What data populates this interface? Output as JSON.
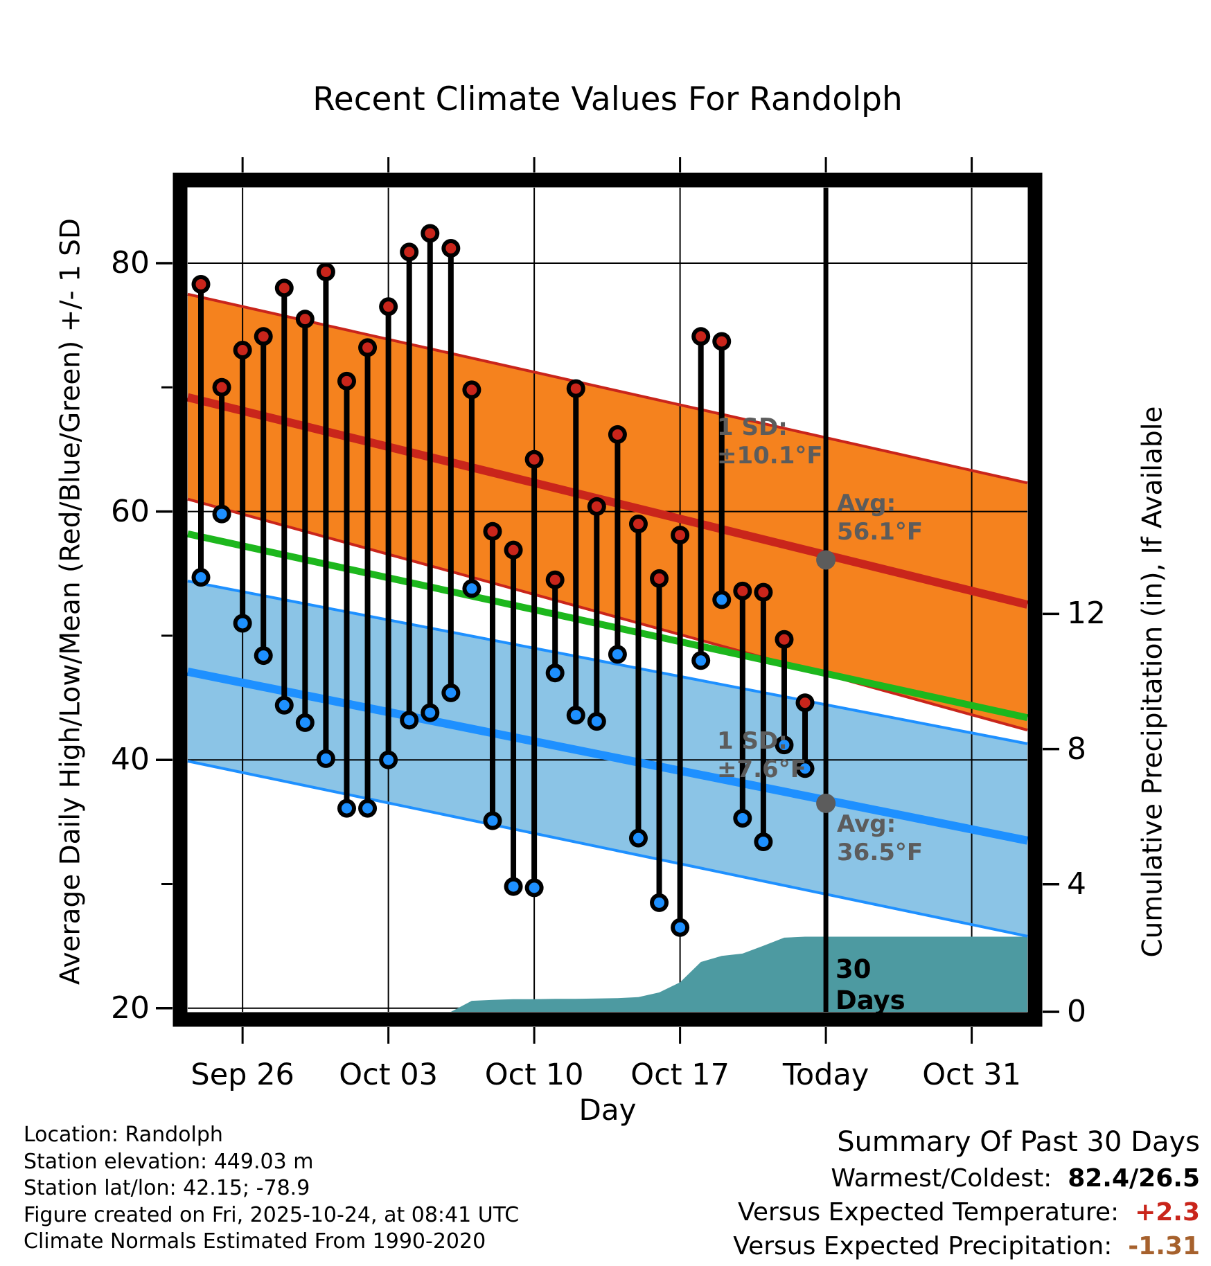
{
  "chart_data": {
    "type": "line",
    "title": "Recent Climate Values For Randolph",
    "xlabel": "Day",
    "ylabel_left": "Average Daily High/Low/Mean (Red/Blue/Green) +/- 1 SD",
    "ylabel_right": "Cumulative Precipitation (in), If Available",
    "x_axis": {
      "tick_labels": [
        "Sep 26",
        "Oct 03",
        "Oct 10",
        "Oct 17",
        "Today",
        "Oct 31"
      ],
      "tick_days": [
        2,
        9,
        16,
        23,
        30,
        37
      ],
      "today_day": 30
    },
    "y_axis_left": {
      "major_ticks": [
        20,
        40,
        60,
        80
      ],
      "minor_ticks": [
        30,
        50,
        70
      ]
    },
    "y_axis_right": {
      "major_ticks": [
        0,
        4,
        8,
        12
      ]
    },
    "grid": true,
    "categories": [
      "Sep 24",
      "Sep 25",
      "Sep 26",
      "Sep 27",
      "Sep 28",
      "Sep 29",
      "Sep 30",
      "Oct 01",
      "Oct 02",
      "Oct 03",
      "Oct 04",
      "Oct 05",
      "Oct 06",
      "Oct 07",
      "Oct 08",
      "Oct 09",
      "Oct 10",
      "Oct 11",
      "Oct 12",
      "Oct 13",
      "Oct 14",
      "Oct 15",
      "Oct 16",
      "Oct 17",
      "Oct 18",
      "Oct 19",
      "Oct 20",
      "Oct 21",
      "Oct 22",
      "Oct 23"
    ],
    "series": [
      {
        "name": "daily_high_F",
        "values": [
          78.3,
          70.0,
          73.0,
          74.1,
          78.0,
          75.5,
          79.3,
          70.5,
          73.2,
          76.5,
          80.9,
          82.4,
          81.2,
          69.8,
          58.4,
          56.9,
          64.2,
          54.5,
          69.9,
          60.4,
          66.2,
          59.0,
          54.6,
          58.1,
          74.1,
          73.7,
          53.6,
          53.5,
          49.7,
          44.6
        ]
      },
      {
        "name": "daily_low_F",
        "values": [
          54.7,
          59.8,
          51.0,
          48.4,
          44.4,
          43.0,
          40.1,
          36.1,
          36.1,
          40.0,
          43.2,
          43.8,
          45.4,
          53.8,
          35.1,
          29.8,
          29.7,
          47.0,
          43.6,
          43.1,
          48.5,
          33.7,
          28.5,
          26.5,
          48.0,
          52.9,
          35.3,
          33.4,
          41.2,
          39.3
        ]
      },
      {
        "name": "cumulative_precip_in",
        "values": [
          0.05,
          0.05,
          0.07,
          0.08,
          0.08,
          0.08,
          0.08,
          0.09,
          0.1,
          0.1,
          0.1,
          0.1,
          0.18,
          0.55,
          0.58,
          0.6,
          0.6,
          0.61,
          0.61,
          0.62,
          0.63,
          0.66,
          0.8,
          1.1,
          1.7,
          1.88,
          1.95,
          2.18,
          2.42,
          2.45
        ]
      }
    ],
    "normals_edge_values": {
      "comment_days_at_plot_edges": [
        -0.63,
        39.67
      ],
      "high_upper": [
        77.5,
        62.3
      ],
      "high_mean": [
        69.2,
        52.5
      ],
      "high_lower": [
        61.0,
        42.4
      ],
      "mean_green": [
        58.2,
        43.4
      ],
      "low_upper": [
        54.4,
        41.3
      ],
      "low_mean": [
        47.1,
        33.5
      ],
      "low_lower": [
        39.9,
        25.8
      ]
    },
    "annotations": {
      "high_sd_line1": "1 SD:",
      "high_sd_line2": "±10.1°F",
      "high_avg_line1": "Avg:",
      "high_avg_line2": "56.1°F",
      "high_avg_value": 56.1,
      "low_sd_line1": "1 SD:",
      "low_sd_line2": "±7.6°F",
      "low_avg_line1": "Avg:",
      "low_avg_line2": "36.5°F",
      "low_avg_value": 36.5,
      "period_line1": "30",
      "period_line2": "Days"
    },
    "colors": {
      "high_band_fill": "#F5821E",
      "red_line": "#C9251B",
      "green_line": "#1DB71D",
      "low_band_fill": "#8BC4E6",
      "blue_line": "#1E90FF",
      "precip_fill": "#4D9AA1",
      "annotation_gray": "#5C5C5C",
      "stem_black": "#000000"
    }
  },
  "footer_left": {
    "line1": "Location: Randolph",
    "line2": "Station elevation: 449.03 m",
    "line3": "Station lat/lon: 42.15; -78.9",
    "line4": "Figure created on Fri, 2025-10-24, at 08:41 UTC",
    "line5": "Climate Normals Estimated From 1990-2020"
  },
  "footer_right": {
    "title": "Summary Of Past 30 Days",
    "warmest_coldest_label": "Warmest/Coldest:",
    "warmest_coldest_value": "82.4/26.5",
    "vs_temp_label": "Versus Expected Temperature:",
    "vs_temp_value": "+2.3",
    "vs_temp_color": "#C9251B",
    "vs_precip_label": "Versus Expected Precipitation:",
    "vs_precip_value": "-1.31",
    "vs_precip_color": "#A6612D"
  }
}
